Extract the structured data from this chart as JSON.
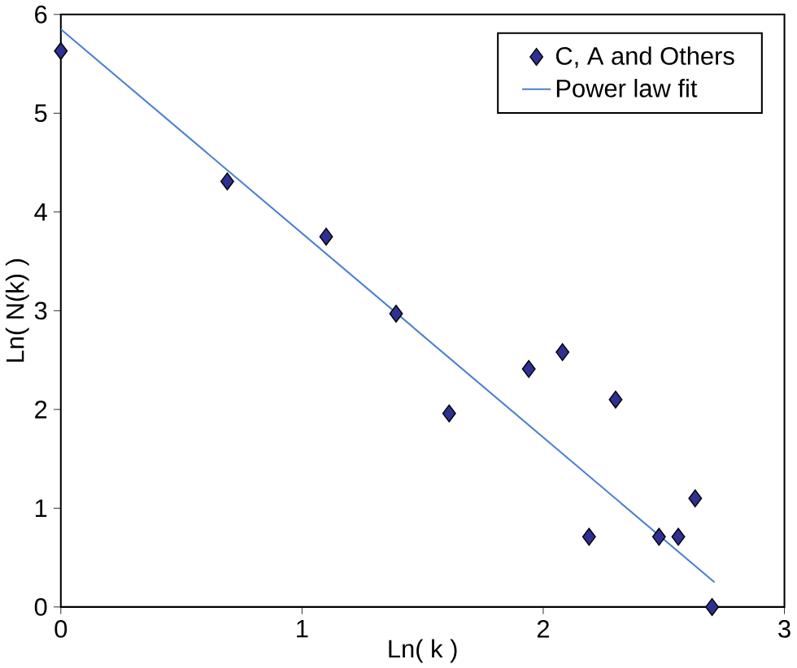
{
  "chart_data": {
    "type": "scatter",
    "xlabel": "Ln( k )",
    "ylabel": "Ln( N(k) )",
    "xlim": [
      0,
      3
    ],
    "ylim": [
      0,
      6
    ],
    "xticks": [
      0,
      1,
      2,
      3
    ],
    "yticks": [
      0,
      1,
      2,
      3,
      4,
      5,
      6
    ],
    "grid": false,
    "legend": "top right",
    "series": [
      {
        "name": "C, A and Others",
        "marker": "diamond",
        "color": "#2e3192",
        "x": [
          0,
          0.69,
          1.1,
          1.39,
          1.61,
          1.94,
          2.08,
          2.19,
          2.3,
          2.48,
          2.56,
          2.63,
          2.7
        ],
        "values": [
          5.63,
          4.31,
          3.75,
          2.97,
          1.96,
          2.41,
          2.58,
          0.71,
          2.1,
          0.71,
          0.71,
          1.1,
          0
        ]
      },
      {
        "name": "Power law fit",
        "type": "line",
        "color": "#4a7fd0",
        "x": [
          0,
          2.71
        ],
        "values": [
          5.85,
          0.25
        ]
      }
    ]
  }
}
